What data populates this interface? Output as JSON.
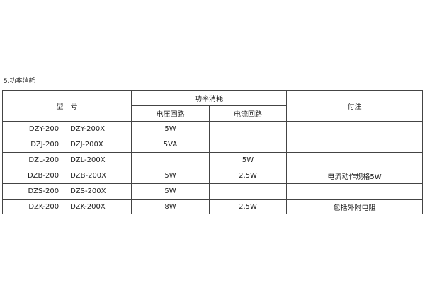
{
  "title": "5.功率消耗",
  "headers": {
    "model": "型　号",
    "power": "功率消耗",
    "voltage": "电压回路",
    "current": "电流回路",
    "note": "付注"
  },
  "rows": [
    {
      "m1": "DZY-200",
      "m2": "DZY-200X",
      "v": "5W",
      "c": "",
      "n": ""
    },
    {
      "m1": "DZJ-200",
      "m2": "DZJ-200X",
      "v": "5VA",
      "c": "",
      "n": ""
    },
    {
      "m1": "DZL-200",
      "m2": "DZL-200X",
      "v": "",
      "c": "5W",
      "n": ""
    },
    {
      "m1": "DZB-200",
      "m2": "DZB-200X",
      "v": "5W",
      "c": "2.5W",
      "n": "电流动作规格5W"
    },
    {
      "m1": "DZS-200",
      "m2": "DZS-200X",
      "v": "5W",
      "c": "",
      "n": ""
    },
    {
      "m1": "DZK-200",
      "m2": "DZK-200X",
      "v": "8W",
      "c": "2.5W",
      "n": "包括外附电阻"
    }
  ]
}
